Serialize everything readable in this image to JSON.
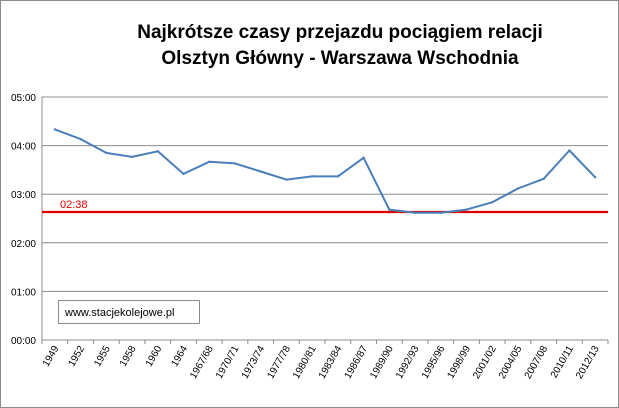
{
  "chart_data": {
    "type": "line",
    "title_lines": [
      "Najkrótsze czasy przejazdu pociągiem relacji",
      "Olsztyn Główny - Warszawa Wschodnia"
    ],
    "categories": [
      "1949",
      "1952",
      "1955",
      "1958",
      "1960",
      "1964",
      "1967/68",
      "1970/71",
      "1973/74",
      "1977/78",
      "1980/81",
      "1983/84",
      "1986/87",
      "1989/90",
      "1992/93",
      "1995/96",
      "1998/99",
      "2001/02",
      "2004/05",
      "2007/08",
      "2010/11",
      "2012/13"
    ],
    "values_minutes": [
      260,
      248,
      231,
      226,
      233,
      205,
      220,
      218,
      208,
      198,
      202,
      202,
      225,
      161,
      157,
      157,
      161,
      170,
      187,
      199,
      234,
      201
    ],
    "y_tick_labels": [
      "00:00",
      "01:00",
      "02:00",
      "03:00",
      "04:00",
      "05:00"
    ],
    "ylim_minutes": [
      0,
      300
    ],
    "line_color": "#4a7ebb",
    "reference_line": {
      "label": "02:38",
      "value_minutes": 158,
      "color": "#e00000"
    },
    "grid": true,
    "legend": "none"
  },
  "watermark": {
    "text": "www.stacjekolejowe.pl"
  }
}
